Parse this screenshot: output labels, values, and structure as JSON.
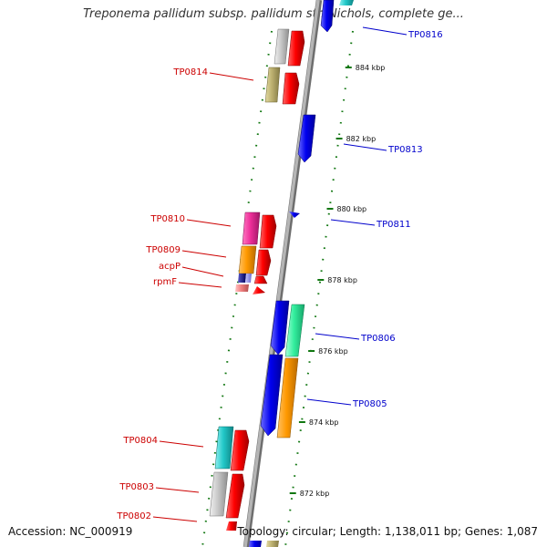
{
  "title": "Treponema pallidum subsp. pallidum str. Nichols, complete ge...",
  "footer": {
    "accession": "Accession: NC_000919",
    "summary": "Topology: circular; Length: 1,138,011 bp; Genes: 1,087"
  },
  "ticks": [
    "884 kbp",
    "882 kbp",
    "880 kbp",
    "878 kbp",
    "876 kbp",
    "874 kbp",
    "872 kbp"
  ],
  "reverse_labels": [
    "TP0814",
    "TP0810",
    "TP0809",
    "acpP",
    "rpmF",
    "TP0804",
    "TP0803",
    "TP0802"
  ],
  "forward_labels": [
    "TP0816",
    "TP0813",
    "TP0811",
    "TP0806",
    "TP0805"
  ],
  "colors": {
    "reverse_label": "#cc0000",
    "forward_label": "#0000cc",
    "tick": "#117711",
    "backbone": "#9a9a9a"
  }
}
